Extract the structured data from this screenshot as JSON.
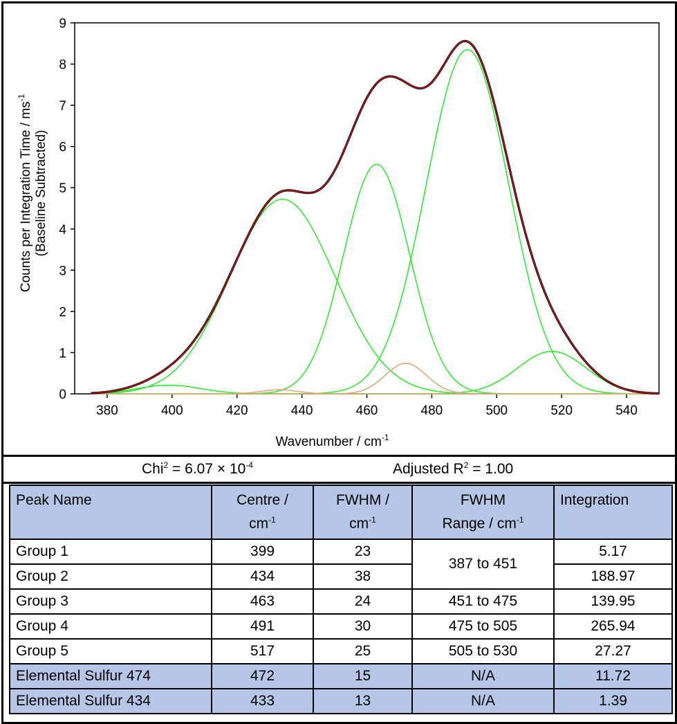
{
  "chart_data": {
    "type": "line",
    "title": "",
    "xlabel": "Wavenumber / cm-1",
    "ylabel": "Counts per Integration Time / ms-1",
    "ylabel_sub": "(Baseline Subtracted)",
    "xlim": [
      370,
      550
    ],
    "ylim": [
      0,
      9
    ],
    "x_ticks": [
      380,
      400,
      420,
      440,
      460,
      480,
      500,
      520,
      540
    ],
    "y_ticks": [
      0,
      1,
      2,
      3,
      4,
      5,
      6,
      7,
      8,
      9
    ],
    "x_range_data": [
      375,
      550
    ],
    "series": [
      {
        "name": "Group 1",
        "kind": "group",
        "color": "#33e833",
        "center": 399,
        "fwhm": 23,
        "height": 0.21
      },
      {
        "name": "Group 2",
        "kind": "group",
        "color": "#33e833",
        "center": 434,
        "fwhm": 38,
        "height": 4.72
      },
      {
        "name": "Group 3",
        "kind": "group",
        "color": "#33e833",
        "center": 463,
        "fwhm": 24,
        "height": 5.57
      },
      {
        "name": "Group 4",
        "kind": "group",
        "color": "#33e833",
        "center": 491,
        "fwhm": 30,
        "height": 8.35
      },
      {
        "name": "Group 5",
        "kind": "group",
        "color": "#33e833",
        "center": 517,
        "fwhm": 25,
        "height": 1.03
      },
      {
        "name": "Elemental Sulfur 474",
        "kind": "sulfur",
        "color": "#e0a878",
        "center": 472,
        "fwhm": 15,
        "height": 0.74
      },
      {
        "name": "Elemental Sulfur 434",
        "kind": "sulfur",
        "color": "#e0a878",
        "center": 433,
        "fwhm": 13,
        "height": 0.1
      }
    ],
    "total_fit": {
      "name": "Cumulative fit",
      "color": "#d01818"
    },
    "measured": {
      "name": "Measured spectrum",
      "color": "#000000"
    }
  },
  "stats": {
    "chi_label": "Chi",
    "chi_sup": "2",
    "chi_value": " = 6.07 × 10",
    "chi_exp": "-4",
    "r2_label": "Adjusted R",
    "r2_sup": "2",
    "r2_value": " = 1.00"
  },
  "table": {
    "headers": {
      "name": "Peak Name",
      "centre_line1": "Centre /",
      "centre_unit": "cm",
      "fwhm_line1": "FWHM /",
      "fwhm_unit": "cm",
      "range_line1": "FWHM",
      "range_line2": "Range / cm",
      "integration": "Integration",
      "unit_sup": "-1"
    },
    "rows": [
      {
        "name": "Group 1",
        "centre": "399",
        "fwhm": "23",
        "range": "387 to 451",
        "integration": "5.17"
      },
      {
        "name": "Group 2",
        "centre": "434",
        "fwhm": "38",
        "range": "",
        "integration": "188.97"
      },
      {
        "name": "Group 3",
        "centre": "463",
        "fwhm": "24",
        "range": "451 to 475",
        "integration": "139.95"
      },
      {
        "name": "Group 4",
        "centre": "491",
        "fwhm": "30",
        "range": "475 to 505",
        "integration": "265.94"
      },
      {
        "name": "Group 5",
        "centre": "517",
        "fwhm": "25",
        "range": "505 to 530",
        "integration": "27.27"
      },
      {
        "name": "Elemental Sulfur 474",
        "centre": "472",
        "fwhm": "15",
        "range": "N/A",
        "integration": "11.72"
      },
      {
        "name": "Elemental Sulfur 434",
        "centre": "433",
        "fwhm": "13",
        "range": "N/A",
        "integration": "1.39"
      }
    ]
  }
}
